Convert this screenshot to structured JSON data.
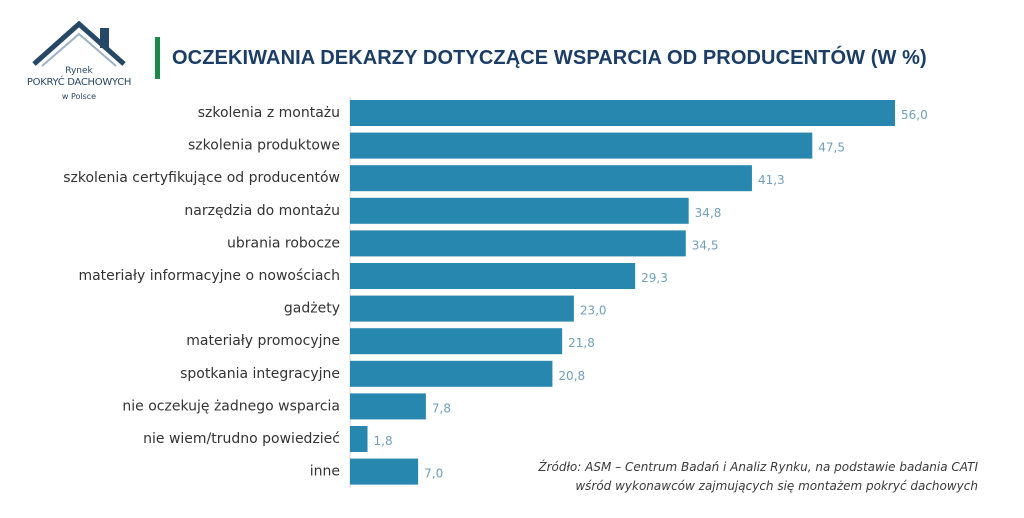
{
  "logo": {
    "line1": "Rynek",
    "line2": "POKRYĆ DACHOWYCH",
    "line3": "w Polsce",
    "color": "#274766"
  },
  "header": {
    "title": "OCZEKIWANIA DEKARZY DOTYCZĄCE WSPARCIA OD PRODUCENTÓW (W %)",
    "accent_color": "#1a8a4a"
  },
  "chart_data": {
    "type": "bar",
    "orientation": "horizontal",
    "title": "OCZEKIWANIA DEKARZY DOTYCZĄCE WSPARCIA OD PRODUCENTÓW (W %)",
    "categories": [
      "szkolenia z montażu",
      "szkolenia produktowe",
      "szkolenia certyfikujące od producentów",
      "narzędzia do montażu",
      "ubrania robocze",
      "materiały informacyjne o nowościach",
      "gadżety",
      "materiały promocyjne",
      "spotkania integracyjne",
      "nie oczekuję żadnego wsparcia",
      "nie wiem/trudno powiedzieć",
      "inne"
    ],
    "values": [
      56.0,
      47.5,
      41.3,
      34.8,
      34.5,
      29.3,
      23.0,
      21.8,
      20.8,
      7.8,
      1.8,
      7.0
    ],
    "value_labels": [
      "56,0",
      "47,5",
      "41,3",
      "34,8",
      "34,5",
      "29,3",
      "23,0",
      "21,8",
      "20,8",
      "7,8",
      "1,8",
      "7,0"
    ],
    "xlim": [
      0,
      56
    ],
    "grid": false,
    "bar_color": "#2787ae",
    "label_color": "#6f9fba"
  },
  "source": {
    "line1": "Źródło: ASM – Centrum Badań i Analiz Rynku, na podstawie badania CATI",
    "line2": "wśród wykonawców zajmujących się montażem pokryć dachowych"
  }
}
